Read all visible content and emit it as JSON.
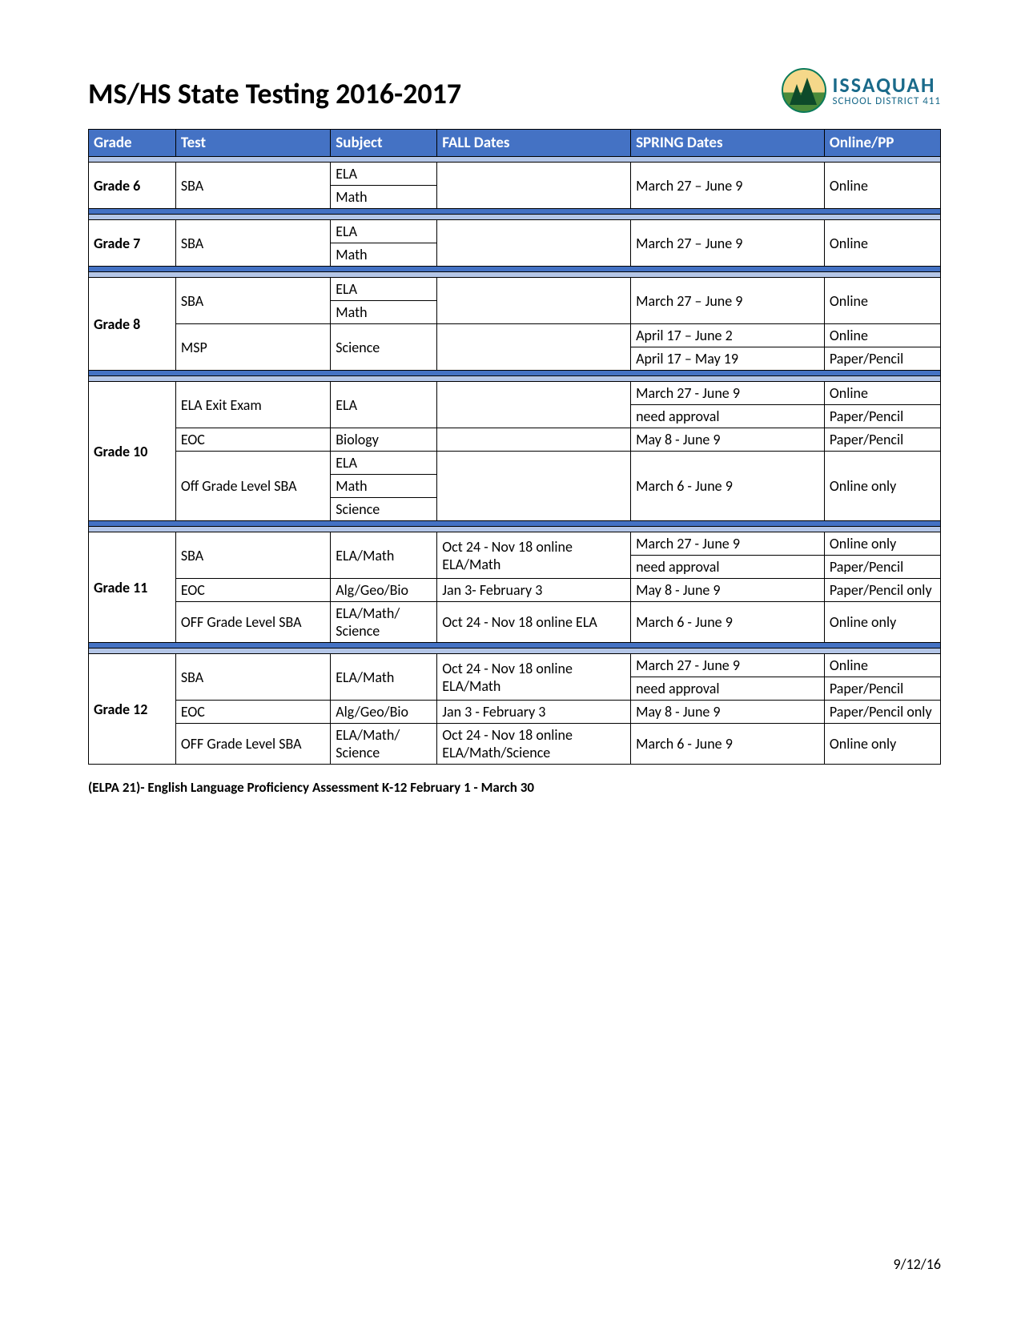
{
  "title": "MS/HS State Testing 2016-2017",
  "logo": {
    "line1": "ISSAQUAH",
    "line2": "SCHOOL DISTRICT 411"
  },
  "columns": [
    "Grade",
    "Test",
    "Subject",
    "FALL Dates",
    "SPRING Dates",
    "Online/PP"
  ],
  "colors": {
    "header_bg": "#4472c4",
    "header_fg": "#ffffff",
    "subsep_bg": "#b4c6e7",
    "highlight": "#ffff00",
    "border": "#000000"
  },
  "footnote": "(ELPA 21)- English Language Proficiency Assessment  K-12 February 1 - March 30",
  "footer_date": "9/12/16",
  "g6": {
    "grade": "Grade 6",
    "test": "SBA",
    "subj1": "ELA",
    "subj2": "Math",
    "spring": "March 27 – June 9",
    "mode": "Online"
  },
  "g7": {
    "grade": "Grade 7",
    "test": "SBA",
    "subj1": "ELA",
    "subj2": "Math",
    "spring": "March 27 – June 9",
    "mode": "Online"
  },
  "g8": {
    "grade": "Grade 8",
    "r1": {
      "test": "SBA",
      "subj1": "ELA",
      "subj2": "Math",
      "spring": "March 27 – June 9",
      "mode": "Online"
    },
    "r2": {
      "test": "MSP",
      "subj": "Science",
      "spring1": "April 17 – June 2",
      "mode1": "Online",
      "spring2": "April 17 – May 19",
      "mode2": "Paper/Pencil"
    }
  },
  "g10": {
    "grade": "Grade 10",
    "r1": {
      "test": "ELA Exit Exam",
      "subj": "ELA",
      "spring1": "March 27 - June 9",
      "mode1": "Online",
      "spring2": "need approval",
      "mode2": "Paper/Pencil"
    },
    "r2": {
      "test": "EOC",
      "subj": "Biology",
      "spring": "May 8 - June 9",
      "mode": "Paper/Pencil"
    },
    "r3": {
      "test": "Off Grade Level SBA",
      "subj1": "ELA",
      "subj2": "Math",
      "subj3": "Science",
      "spring": "March 6 - June 9",
      "mode": "Online only"
    }
  },
  "g11": {
    "grade": "Grade 11",
    "r1": {
      "test": "SBA",
      "subj": "ELA/Math",
      "fall": "Oct 24 - Nov 18 online ELA/Math",
      "spring1": "March 27 - June 9",
      "mode1": "Online only",
      "spring2": "need approval",
      "mode2": "Paper/Pencil"
    },
    "r2": {
      "test": "EOC",
      "subj": "Alg/Geo/Bio",
      "fall": "Jan 3- February 3",
      "spring": "May 8 - June 9",
      "mode": "Paper/Pencil only"
    },
    "r3": {
      "test": "OFF Grade Level SBA",
      "subj": "ELA/Math/ Science",
      "fall": "Oct 24 - Nov 18 online ELA",
      "spring": "March 6 - June 9",
      "mode": "Online only"
    }
  },
  "g12": {
    "grade": "Grade 12",
    "r1": {
      "test": "SBA",
      "subj": "ELA/Math",
      "fall": "Oct 24 - Nov 18 online ELA/Math",
      "spring1": "March 27 - June 9",
      "mode1": "Online",
      "spring2": "need approval",
      "mode2": "Paper/Pencil"
    },
    "r2": {
      "test": "EOC",
      "subj": "Alg/Geo/Bio",
      "fall": "Jan 3 - February 3",
      "spring": "May 8 - June 9",
      "mode": "Paper/Pencil only"
    },
    "r3": {
      "test": "OFF Grade Level SBA",
      "subj": "ELA/Math/ Science",
      "fall": "Oct 24 - Nov 18 online ELA/Math/Science",
      "spring": "March 6 - June 9",
      "mode": "Online only"
    }
  }
}
